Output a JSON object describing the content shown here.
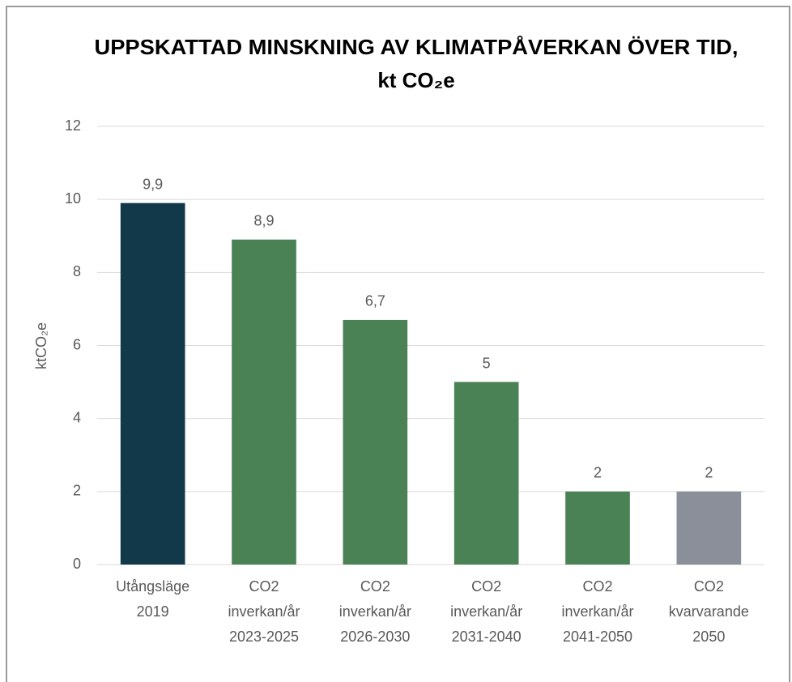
{
  "chart_data": {
    "type": "bar",
    "title": [
      "UPPSKATTAD MINSKNING AV KLIMATPÅVERKAN ÖVER TID,",
      "kt CO₂e"
    ],
    "y_label": "ktCO₂e",
    "categories": [
      [
        "Utångsläge",
        "2019"
      ],
      [
        "CO2",
        "inverkan/år",
        "2023-2025"
      ],
      [
        "CO2",
        "inverkan/år",
        "2026-2030"
      ],
      [
        "CO2",
        "inverkan/år",
        "2031-2040"
      ],
      [
        "CO2",
        "inverkan/år",
        "2041-2050"
      ],
      [
        "CO2",
        "kvarvarande",
        "2050"
      ]
    ],
    "values": [
      9.9,
      8.9,
      6.7,
      5,
      2,
      2
    ],
    "value_labels": [
      "9,9",
      "8,9",
      "6,7",
      "5",
      "2",
      "2"
    ],
    "colors": [
      "#12394a",
      "#4a8256",
      "#4a8256",
      "#4a8256",
      "#4a8256",
      "#8a8f99"
    ],
    "ylim": [
      0,
      12
    ],
    "yticks": [
      0,
      2,
      4,
      6,
      8,
      10,
      12
    ],
    "grid": true
  }
}
